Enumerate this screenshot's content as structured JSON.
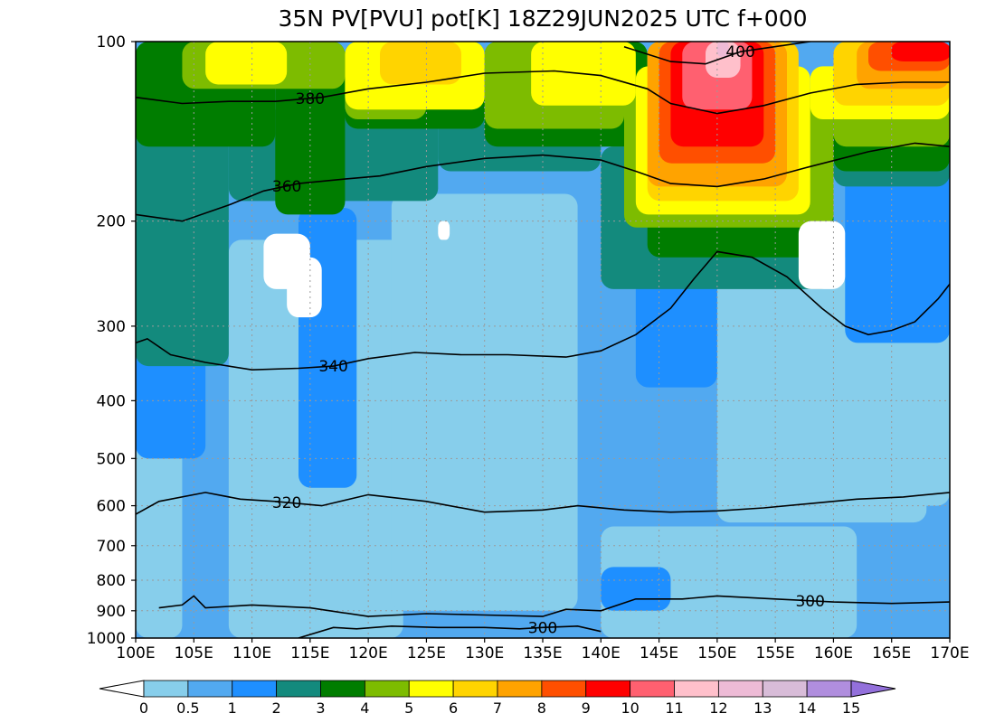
{
  "chart_data": {
    "type": "heatmap",
    "title": "35N PV[PVU] pot[K] 18Z29JUN2025 UTC f+000",
    "xlabel": "",
    "ylabel": "",
    "x_range": [
      100,
      170
    ],
    "y_range_hpa": [
      1000,
      100
    ],
    "y_scale": "log",
    "x_ticks": [
      {
        "value": 100,
        "label": "100E"
      },
      {
        "value": 105,
        "label": "105E"
      },
      {
        "value": 110,
        "label": "110E"
      },
      {
        "value": 115,
        "label": "115E"
      },
      {
        "value": 120,
        "label": "120E"
      },
      {
        "value": 125,
        "label": "125E"
      },
      {
        "value": 130,
        "label": "130E"
      },
      {
        "value": 135,
        "label": "135E"
      },
      {
        "value": 140,
        "label": "140E"
      },
      {
        "value": 145,
        "label": "145E"
      },
      {
        "value": 150,
        "label": "150E"
      },
      {
        "value": 155,
        "label": "155E"
      },
      {
        "value": 160,
        "label": "160E"
      },
      {
        "value": 165,
        "label": "165E"
      },
      {
        "value": 170,
        "label": "170E"
      }
    ],
    "y_ticks": [
      {
        "value": 100,
        "label": "100"
      },
      {
        "value": 200,
        "label": "200"
      },
      {
        "value": 300,
        "label": "300"
      },
      {
        "value": 400,
        "label": "400"
      },
      {
        "value": 500,
        "label": "500"
      },
      {
        "value": 600,
        "label": "600"
      },
      {
        "value": 700,
        "label": "700"
      },
      {
        "value": 800,
        "label": "800"
      },
      {
        "value": 900,
        "label": "900"
      },
      {
        "value": 1000,
        "label": "1000"
      }
    ],
    "grid": true,
    "colorbar": {
      "levels": [
        {
          "value": 0,
          "label": "0"
        },
        {
          "value": 0.5,
          "label": "0.5"
        },
        {
          "value": 1,
          "label": "1"
        },
        {
          "value": 2,
          "label": "2"
        },
        {
          "value": 3,
          "label": "3"
        },
        {
          "value": 4,
          "label": "4"
        },
        {
          "value": 5,
          "label": "5"
        },
        {
          "value": 6,
          "label": "6"
        },
        {
          "value": 7,
          "label": "7"
        },
        {
          "value": 8,
          "label": "8"
        },
        {
          "value": 9,
          "label": "9"
        },
        {
          "value": 10,
          "label": "10"
        },
        {
          "value": 11,
          "label": "11"
        },
        {
          "value": 12,
          "label": "12"
        },
        {
          "value": 13,
          "label": "13"
        },
        {
          "value": 14,
          "label": "14"
        },
        {
          "value": 15,
          "label": "15"
        }
      ],
      "colors": [
        "#87ceeb",
        "#52a9f0",
        "#1e8fff",
        "#138a7d",
        "#007d00",
        "#7dbc00",
        "#ffff00",
        "#ffd400",
        "#ffa300",
        "#ff4f00",
        "#ff0000",
        "#ff6070",
        "#ffc0cb",
        "#eebbd6",
        "#d8bcd8",
        "#b08ede"
      ],
      "under_color": "#ffffff",
      "over_color": "#9370db"
    },
    "pv_fields": {
      "background_level": 1,
      "regions": [
        {
          "level": 0,
          "lon": [
            108,
            123
          ],
          "p": [
            215,
            1000
          ]
        },
        {
          "level": 0,
          "lon": [
            122,
            138
          ],
          "p": [
            180,
            900
          ]
        },
        {
          "level": 0,
          "lon": [
            150,
            168
          ],
          "p": [
            230,
            640
          ]
        },
        {
          "level": 0,
          "lon": [
            140,
            162
          ],
          "p": [
            650,
            1000
          ]
        },
        {
          "level": 0,
          "lon": [
            100,
            104
          ],
          "p": [
            420,
            1000
          ]
        },
        {
          "level": 0,
          "lon": [
            163,
            170
          ],
          "p": [
            260,
            600
          ]
        },
        {
          "level": 2,
          "lon": [
            100,
            106
          ],
          "p": [
            200,
            500
          ]
        },
        {
          "level": 2,
          "lon": [
            114,
            119
          ],
          "p": [
            190,
            560
          ]
        },
        {
          "level": 2,
          "lon": [
            143,
            150
          ],
          "p": [
            200,
            380
          ]
        },
        {
          "level": 2,
          "lon": [
            140,
            146
          ],
          "p": [
            760,
            900
          ]
        },
        {
          "level": 2,
          "lon": [
            161,
            170
          ],
          "p": [
            150,
            320
          ]
        },
        {
          "level": 3,
          "lon": [
            100,
            108
          ],
          "p": [
            140,
            350
          ]
        },
        {
          "level": 3,
          "lon": [
            108,
            126
          ],
          "p": [
            130,
            185
          ]
        },
        {
          "level": 3,
          "lon": [
            126,
            140
          ],
          "p": [
            120,
            165
          ]
        },
        {
          "level": 3,
          "lon": [
            140,
            160
          ],
          "p": [
            150,
            260
          ]
        },
        {
          "level": 3,
          "lon": [
            160,
            170
          ],
          "p": [
            145,
            175
          ]
        },
        {
          "level": 4,
          "lon": [
            100,
            112
          ],
          "p": [
            100,
            150
          ]
        },
        {
          "level": 4,
          "lon": [
            112,
            118
          ],
          "p": [
            100,
            195
          ]
        },
        {
          "level": 4,
          "lon": [
            118,
            130
          ],
          "p": [
            100,
            140
          ]
        },
        {
          "level": 4,
          "lon": [
            130,
            144
          ],
          "p": [
            100,
            150
          ]
        },
        {
          "level": 4,
          "lon": [
            144,
            160
          ],
          "p": [
            130,
            230
          ]
        },
        {
          "level": 4,
          "lon": [
            160,
            170
          ],
          "p": [
            130,
            165
          ]
        },
        {
          "level": 5,
          "lon": [
            104,
            118
          ],
          "p": [
            100,
            120
          ]
        },
        {
          "level": 5,
          "lon": [
            118,
            125
          ],
          "p": [
            100,
            135
          ]
        },
        {
          "level": 5,
          "lon": [
            130,
            142
          ],
          "p": [
            100,
            140
          ]
        },
        {
          "level": 5,
          "lon": [
            142,
            160
          ],
          "p": [
            120,
            205
          ]
        },
        {
          "level": 5,
          "lon": [
            160,
            170
          ],
          "p": [
            118,
            150
          ]
        },
        {
          "level": 6,
          "lon": [
            106,
            113
          ],
          "p": [
            100,
            118
          ]
        },
        {
          "level": 6,
          "lon": [
            118,
            130
          ],
          "p": [
            100,
            130
          ]
        },
        {
          "level": 6,
          "lon": [
            134,
            143
          ],
          "p": [
            100,
            128
          ]
        },
        {
          "level": 6,
          "lon": [
            143,
            158
          ],
          "p": [
            110,
            195
          ]
        },
        {
          "level": 6,
          "lon": [
            158,
            170
          ],
          "p": [
            110,
            135
          ]
        },
        {
          "level": 7,
          "lon": [
            121,
            128
          ],
          "p": [
            100,
            118
          ]
        },
        {
          "level": 7,
          "lon": [
            144,
            157
          ],
          "p": [
            100,
            185
          ]
        },
        {
          "level": 7,
          "lon": [
            160,
            170
          ],
          "p": [
            100,
            128
          ]
        },
        {
          "level": 8,
          "lon": [
            144,
            156
          ],
          "p": [
            100,
            175
          ]
        },
        {
          "level": 8,
          "lon": [
            162,
            170
          ],
          "p": [
            100,
            120
          ]
        },
        {
          "level": 9,
          "lon": [
            145,
            155
          ],
          "p": [
            100,
            160
          ]
        },
        {
          "level": 9,
          "lon": [
            163,
            170
          ],
          "p": [
            100,
            112
          ]
        },
        {
          "level": 10,
          "lon": [
            146,
            154
          ],
          "p": [
            100,
            150
          ]
        },
        {
          "level": 10,
          "lon": [
            165,
            170
          ],
          "p": [
            100,
            108
          ]
        },
        {
          "level": 11,
          "lon": [
            147,
            153
          ],
          "p": [
            100,
            130
          ]
        },
        {
          "level": 12,
          "lon": [
            149,
            152
          ],
          "p": [
            100,
            115
          ]
        },
        {
          "level": 13,
          "lon": [
            150,
            151
          ],
          "p": [
            100,
            106
          ]
        },
        {
          "level": -1,
          "lon": [
            111,
            115
          ],
          "p": [
            210,
            260
          ]
        },
        {
          "level": -1,
          "lon": [
            113,
            116
          ],
          "p": [
            230,
            290
          ]
        },
        {
          "level": -1,
          "lon": [
            126,
            127
          ],
          "p": [
            200,
            215
          ]
        },
        {
          "level": -1,
          "lon": [
            157,
            161
          ],
          "p": [
            200,
            260
          ]
        }
      ]
    },
    "theta_contours": [
      {
        "label": "400",
        "label_lon": 152,
        "points": [
          [
            142,
            102
          ],
          [
            146,
            108
          ],
          [
            149,
            109
          ],
          [
            152,
            104
          ],
          [
            158,
            100
          ]
        ]
      },
      {
        "label": "380",
        "label_lon": 115,
        "points": [
          [
            100,
            124
          ],
          [
            104,
            127
          ],
          [
            108,
            126
          ],
          [
            112,
            126
          ],
          [
            116,
            124
          ],
          [
            120,
            120
          ],
          [
            125,
            117
          ],
          [
            130,
            113
          ],
          [
            136,
            112
          ],
          [
            140,
            114
          ],
          [
            144,
            120
          ],
          [
            146,
            127
          ],
          [
            150,
            132
          ],
          [
            154,
            128
          ],
          [
            158,
            122
          ],
          [
            162,
            118
          ],
          [
            166,
            117
          ],
          [
            170,
            117
          ]
        ]
      },
      {
        "label": "360",
        "label_lon": 113,
        "points": [
          [
            100,
            195
          ],
          [
            104,
            200
          ],
          [
            108,
            188
          ],
          [
            111,
            178
          ],
          [
            114,
            173
          ],
          [
            118,
            170
          ],
          [
            121,
            168
          ],
          [
            125,
            162
          ],
          [
            130,
            157
          ],
          [
            135,
            155
          ],
          [
            140,
            158
          ],
          [
            143,
            165
          ],
          [
            146,
            173
          ],
          [
            150,
            175
          ],
          [
            154,
            170
          ],
          [
            158,
            162
          ],
          [
            163,
            153
          ],
          [
            167,
            148
          ],
          [
            170,
            150
          ]
        ]
      },
      {
        "label": "340",
        "label_lon": 117,
        "points": [
          [
            100,
            320
          ],
          [
            101,
            315
          ],
          [
            103,
            335
          ],
          [
            106,
            345
          ],
          [
            110,
            355
          ],
          [
            114,
            353
          ],
          [
            117,
            350
          ],
          [
            120,
            340
          ],
          [
            124,
            332
          ],
          [
            128,
            335
          ],
          [
            132,
            335
          ],
          [
            137,
            338
          ],
          [
            140,
            330
          ],
          [
            143,
            310
          ],
          [
            146,
            280
          ],
          [
            148,
            250
          ],
          [
            150,
            225
          ],
          [
            153,
            230
          ],
          [
            156,
            248
          ],
          [
            159,
            280
          ],
          [
            161,
            300
          ],
          [
            163,
            310
          ],
          [
            165,
            305
          ],
          [
            167,
            295
          ],
          [
            169,
            270
          ],
          [
            170,
            255
          ]
        ]
      },
      {
        "label": "320",
        "label_lon": 113,
        "points": [
          [
            100,
            620
          ],
          [
            102,
            590
          ],
          [
            106,
            570
          ],
          [
            109,
            585
          ],
          [
            112,
            590
          ],
          [
            116,
            600
          ],
          [
            120,
            575
          ],
          [
            125,
            590
          ],
          [
            130,
            615
          ],
          [
            135,
            610
          ],
          [
            138,
            600
          ],
          [
            142,
            610
          ],
          [
            146,
            615
          ],
          [
            150,
            612
          ],
          [
            154,
            605
          ],
          [
            158,
            595
          ],
          [
            162,
            585
          ],
          [
            166,
            580
          ],
          [
            170,
            570
          ]
        ]
      },
      {
        "label": "300",
        "label_lon": 158,
        "points": [
          [
            102,
            890
          ],
          [
            104,
            880
          ],
          [
            105,
            850
          ],
          [
            106,
            890
          ],
          [
            110,
            880
          ],
          [
            115,
            890
          ],
          [
            120,
            920
          ],
          [
            125,
            910
          ],
          [
            130,
            915
          ],
          [
            135,
            920
          ],
          [
            137,
            895
          ],
          [
            140,
            900
          ],
          [
            143,
            860
          ],
          [
            147,
            860
          ],
          [
            150,
            850
          ],
          [
            155,
            860
          ],
          [
            160,
            870
          ],
          [
            165,
            875
          ],
          [
            170,
            870
          ]
        ]
      },
      {
        "label": "300",
        "label_lon": 135,
        "points": [
          [
            114,
            1000
          ],
          [
            117,
            960
          ],
          [
            119,
            965
          ],
          [
            122,
            955
          ],
          [
            126,
            960
          ],
          [
            130,
            960
          ],
          [
            133,
            965
          ],
          [
            135,
            960
          ],
          [
            138,
            955
          ],
          [
            140,
            975
          ]
        ]
      }
    ]
  }
}
